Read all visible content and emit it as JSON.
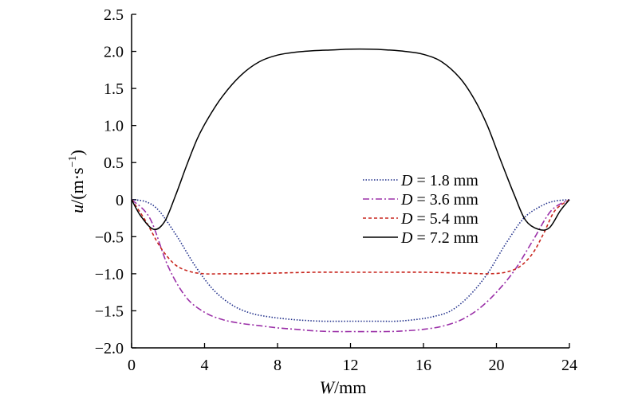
{
  "chart_data": {
    "type": "line",
    "xlabel": {
      "var": "W",
      "unit": "/mm"
    },
    "ylabel": {
      "var": "u",
      "unit_pre": "/(m·s",
      "unit_exp": "−1",
      "unit_post": ")"
    },
    "xlim": [
      0,
      24
    ],
    "ylim": [
      -2.0,
      2.5
    ],
    "xticks": [
      0,
      4,
      8,
      12,
      16,
      20,
      24
    ],
    "yticks": [
      2.5,
      2.0,
      1.5,
      1.0,
      0.5,
      0,
      -0.5,
      -1.0,
      -1.5,
      -2.0
    ],
    "ytick_labels": [
      "2.5",
      "2.0",
      "1.5",
      "1.0",
      "0.5",
      "0",
      "−0.5",
      "−1.0",
      "−1.5",
      "−2.0"
    ],
    "xtick_labels": [
      "0",
      "4",
      "8",
      "12",
      "16",
      "20",
      "24"
    ],
    "grid": false,
    "legend_position": "center-right",
    "series": [
      {
        "name": "D = 1.8 mm",
        "legend_var": "D",
        "legend_rest": " = 1.8 mm",
        "color": "#1f2e8a",
        "dash": "1.5,2",
        "x": [
          0,
          0.8,
          1.5,
          2.5,
          3.5,
          4.5,
          5.5,
          6.5,
          7.5,
          8.5,
          9.5,
          10.5,
          12,
          13.5,
          14.5,
          15.5,
          16.5,
          17.5,
          18.5,
          19.5,
          20.5,
          21.5,
          22.5,
          23.2,
          24
        ],
        "y": [
          0,
          -0.03,
          -0.15,
          -0.5,
          -0.9,
          -1.22,
          -1.42,
          -1.53,
          -1.58,
          -1.61,
          -1.63,
          -1.64,
          -1.64,
          -1.64,
          -1.64,
          -1.62,
          -1.58,
          -1.5,
          -1.3,
          -1.0,
          -0.6,
          -0.25,
          -0.08,
          -0.02,
          0
        ]
      },
      {
        "name": "D = 3.6 mm",
        "legend_var": "D",
        "legend_rest": " = 3.6 mm",
        "color": "#9b30a8",
        "dash": "8,3,2,3",
        "x": [
          0,
          1,
          2,
          3,
          4,
          5,
          6,
          7,
          8,
          9,
          10,
          11,
          12,
          14,
          15,
          16,
          17,
          18,
          19,
          20,
          21,
          22,
          23,
          24
        ],
        "y": [
          0,
          -0.25,
          -0.9,
          -1.32,
          -1.52,
          -1.62,
          -1.67,
          -1.7,
          -1.73,
          -1.75,
          -1.77,
          -1.78,
          -1.78,
          -1.78,
          -1.77,
          -1.75,
          -1.71,
          -1.63,
          -1.48,
          -1.25,
          -0.95,
          -0.55,
          -0.15,
          0
        ]
      },
      {
        "name": "D = 5.4 mm",
        "legend_var": "D",
        "legend_rest": " = 5.4 mm",
        "color": "#c8261e",
        "dash": "4,3",
        "x": [
          0,
          0.8,
          1.6,
          2.4,
          3.2,
          4,
          5,
          6,
          8,
          10,
          12,
          14,
          16,
          18,
          19.5,
          20.5,
          21.3,
          22,
          22.6,
          23.2,
          24
        ],
        "y": [
          0,
          -0.3,
          -0.65,
          -0.88,
          -0.97,
          -1.0,
          -1.0,
          -1.0,
          -0.99,
          -0.98,
          -0.98,
          -0.98,
          -0.98,
          -0.99,
          -1.0,
          -0.98,
          -0.9,
          -0.72,
          -0.45,
          -0.15,
          0
        ]
      },
      {
        "name": "D = 7.2 mm",
        "legend_var": "D",
        "legend_rest": " = 7.2 mm",
        "color": "#000000",
        "dash": "",
        "x": [
          0,
          0.5,
          1.2,
          1.8,
          2.4,
          3,
          3.6,
          4.2,
          5,
          6,
          7,
          8,
          9,
          10,
          11,
          12,
          13,
          14,
          15,
          16,
          17,
          18,
          18.8,
          19.5,
          20.2,
          21,
          21.6,
          22.3,
          22.9,
          23.5,
          24
        ],
        "y": [
          0,
          -0.22,
          -0.4,
          -0.3,
          0.05,
          0.45,
          0.82,
          1.1,
          1.4,
          1.68,
          1.86,
          1.95,
          1.99,
          2.01,
          2.02,
          2.03,
          2.03,
          2.02,
          2.0,
          1.96,
          1.86,
          1.64,
          1.35,
          1.0,
          0.55,
          0.05,
          -0.28,
          -0.4,
          -0.38,
          -0.15,
          0
        ]
      }
    ]
  }
}
